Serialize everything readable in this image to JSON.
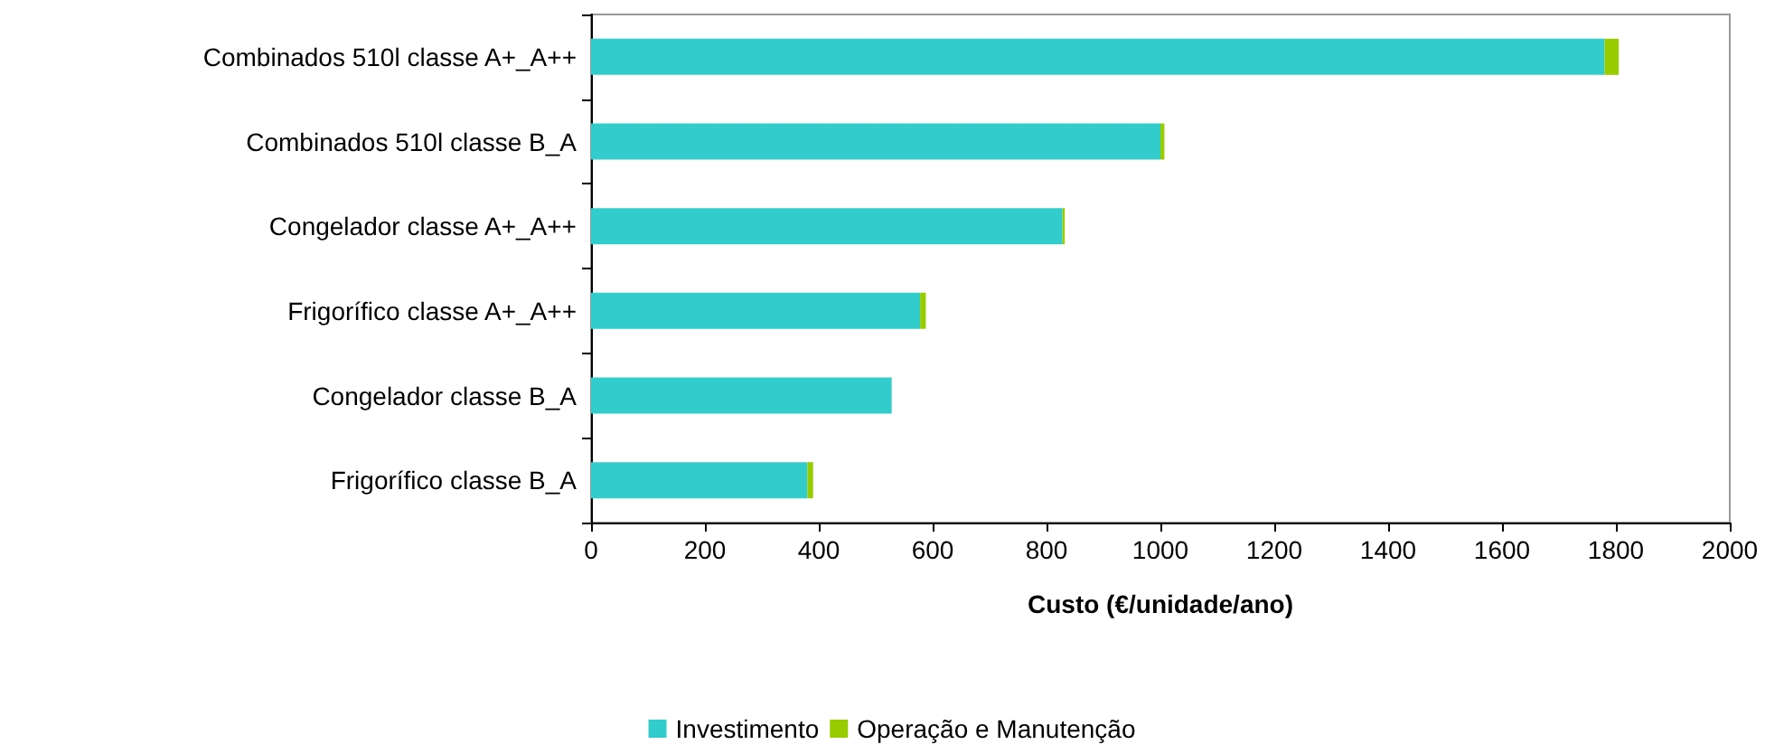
{
  "chart_data": {
    "type": "bar",
    "orientation": "horizontal",
    "stacked": true,
    "xlabel": "Custo (€/unidade/ano)",
    "categories": [
      "Combinados 510l classe A+_A++",
      "Combinados 510l classe B_A",
      "Congelador classe A+_A++",
      "Frigorífico classe A+_A++",
      "Congelador classe B_A",
      "Frigorífico classe B_A"
    ],
    "series": [
      {
        "name": "Investimento",
        "color": "#33cccc",
        "values": [
          1780,
          1000,
          828,
          578,
          528,
          380
        ]
      },
      {
        "name": "Operação e Manutenção",
        "color": "#99cc00",
        "values": [
          25,
          7,
          4,
          10,
          0,
          10
        ]
      }
    ],
    "xlim": [
      0,
      2000
    ],
    "xticks": [
      0,
      200,
      400,
      600,
      800,
      1000,
      1200,
      1400,
      1600,
      1800,
      2000
    ],
    "grid": false,
    "legend": "bottom"
  }
}
